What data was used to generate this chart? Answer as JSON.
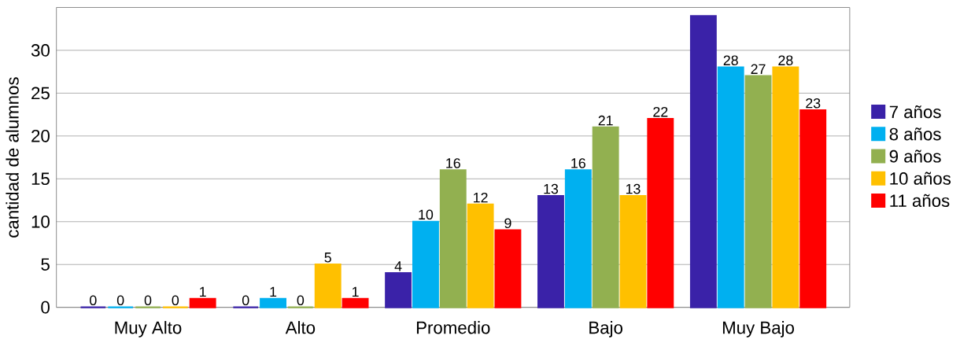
{
  "chart_data": {
    "type": "bar",
    "ylabel": "cantidad de alumnos",
    "categories": [
      "Muy Alto",
      "Alto",
      "Promedio",
      "Bajo",
      "Muy Bajo"
    ],
    "series": [
      {
        "name": "7 años",
        "color": "#3a22a8",
        "values": [
          0,
          0,
          4,
          13,
          34
        ],
        "value_labels": [
          "0",
          "0",
          "4",
          "13",
          null
        ]
      },
      {
        "name": "8 años",
        "color": "#00b0f0",
        "values": [
          0,
          1,
          10,
          16,
          28
        ],
        "value_labels": [
          "0",
          "1",
          "10",
          "16",
          "28"
        ]
      },
      {
        "name": "9 años",
        "color": "#92b050",
        "values": [
          0,
          0,
          16,
          21,
          27
        ],
        "value_labels": [
          "0",
          "0",
          "16",
          "21",
          "27"
        ]
      },
      {
        "name": "10 años",
        "color": "#ffc000",
        "values": [
          0,
          5,
          12,
          13,
          28
        ],
        "value_labels": [
          "0",
          "5",
          "12",
          "13",
          "28"
        ]
      },
      {
        "name": "11 años",
        "color": "#ff0000",
        "values": [
          1,
          1,
          9,
          22,
          23
        ],
        "value_labels": [
          "1",
          "1",
          "9",
          "22",
          "23"
        ]
      }
    ],
    "ylim": [
      0,
      35
    ],
    "yticks": [
      0,
      5,
      10,
      15,
      20,
      25,
      30
    ],
    "grid": "y",
    "legend": "right"
  }
}
